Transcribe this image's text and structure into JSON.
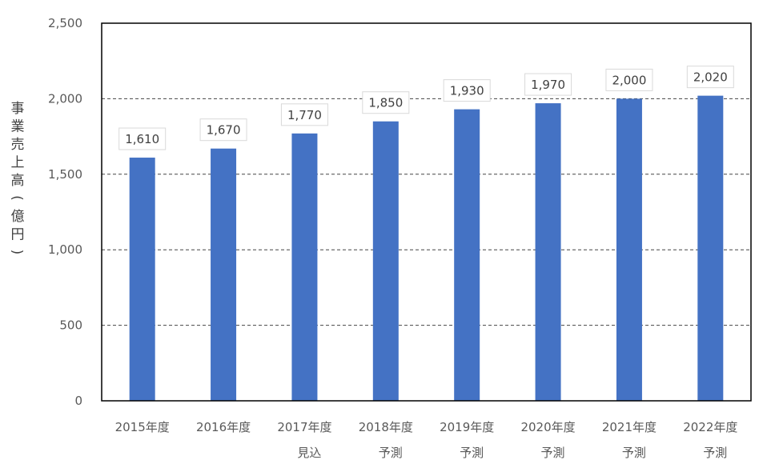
{
  "chart_data": {
    "type": "bar",
    "ylabel": "事業売上高(億円)",
    "ylim": [
      0,
      2500
    ],
    "yticks": [
      0,
      500,
      1000,
      1500,
      2000,
      2500
    ],
    "ytick_labels": [
      "0",
      "500",
      "1,000",
      "1,500",
      "2,000",
      "2,500"
    ],
    "gridlines": "dashed",
    "categories": [
      {
        "line1": "2015年度",
        "line2": ""
      },
      {
        "line1": "2016年度",
        "line2": ""
      },
      {
        "line1": "2017年度",
        "line2": "見込"
      },
      {
        "line1": "2018年度",
        "line2": "予測"
      },
      {
        "line1": "2019年度",
        "line2": "予測"
      },
      {
        "line1": "2020年度",
        "line2": "予測"
      },
      {
        "line1": "2021年度",
        "line2": "予測"
      },
      {
        "line1": "2022年度",
        "line2": "予測"
      }
    ],
    "values": [
      1610,
      1670,
      1770,
      1850,
      1930,
      1970,
      2000,
      2020
    ],
    "data_labels": [
      "1,610",
      "1,670",
      "1,770",
      "1,850",
      "1,930",
      "1,970",
      "2,000",
      "2,020"
    ],
    "colors": {
      "bar": "#4472C4",
      "grid": "#444444",
      "frame": "#000000"
    }
  }
}
